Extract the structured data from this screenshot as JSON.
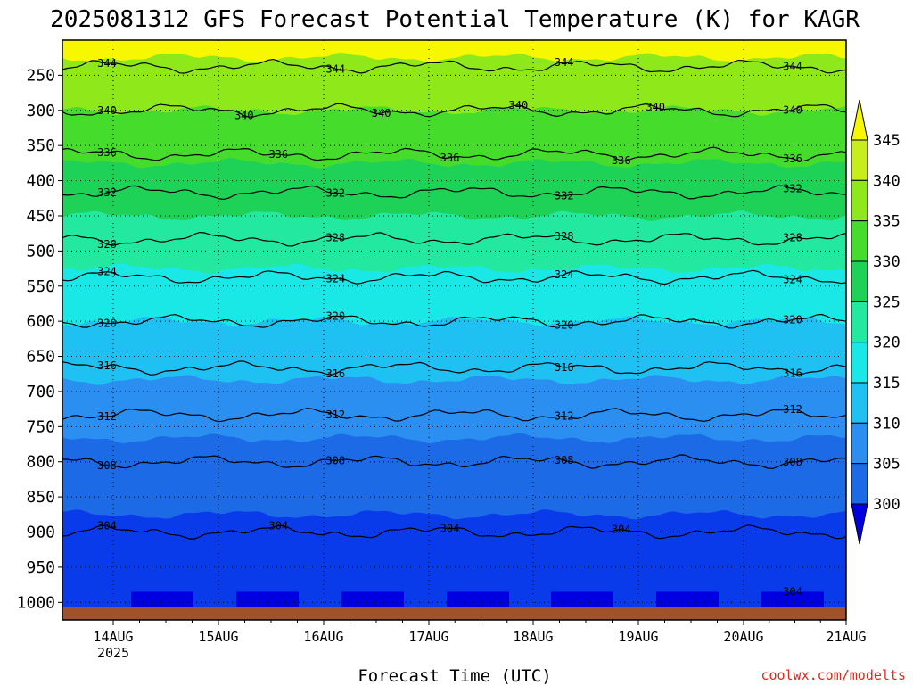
{
  "chart_data": {
    "type": "heatmap",
    "title": "2025081312 GFS Forecast Potential Temperature (K) for KAGR",
    "xlabel": "Forecast Time (UTC)",
    "ylabel": "",
    "x_ticks": [
      "14AUG",
      "15AUG",
      "16AUG",
      "17AUG",
      "18AUG",
      "19AUG",
      "20AUG",
      "21AUG"
    ],
    "x_year_label": "2025",
    "y_ticks": [
      250,
      300,
      350,
      400,
      450,
      500,
      550,
      600,
      650,
      700,
      750,
      800,
      850,
      900,
      950,
      1000
    ],
    "y_axis": "pressure (hPa), decreasing upward",
    "x_range": [
      "2025-08-13 12Z",
      "2025-08-21 00Z"
    ],
    "y_range": [
      1025,
      200
    ],
    "grid": true,
    "colorbar": {
      "levels": [
        300,
        305,
        310,
        315,
        320,
        325,
        330,
        335,
        340,
        345
      ],
      "colors": [
        "#0000e0",
        "#0a3bea",
        "#1c6ae6",
        "#2a8ff0",
        "#1fc0f2",
        "#19e8e6",
        "#22e8a0",
        "#1ed257",
        "#46dc2c",
        "#8fe81a",
        "#c7ee1c",
        "#f7f700"
      ],
      "extend": "both"
    },
    "contour_interval_K": 4,
    "contour_labels": [
      "344",
      "344",
      "344",
      "344",
      "340",
      "340",
      "340",
      "340",
      "340",
      "340",
      "336",
      "336",
      "336",
      "336",
      "336",
      "332",
      "332",
      "332",
      "332",
      "328",
      "328",
      "328",
      "328",
      "324",
      "324",
      "324",
      "324",
      "320",
      "320",
      "320",
      "320",
      "316",
      "316",
      "316",
      "316",
      "312",
      "312",
      "312",
      "312",
      "308",
      "308",
      "308",
      "308",
      "304",
      "304",
      "304",
      "304",
      "304"
    ],
    "level_theta_K": [
      {
        "p": 200,
        "theta": 347
      },
      {
        "p": 250,
        "theta": 343
      },
      {
        "p": 300,
        "theta": 340
      },
      {
        "p": 350,
        "theta": 337
      },
      {
        "p": 400,
        "theta": 333
      },
      {
        "p": 450,
        "theta": 330
      },
      {
        "p": 500,
        "theta": 327
      },
      {
        "p": 550,
        "theta": 323
      },
      {
        "p": 600,
        "theta": 320
      },
      {
        "p": 650,
        "theta": 317
      },
      {
        "p": 700,
        "theta": 314
      },
      {
        "p": 750,
        "theta": 311
      },
      {
        "p": 800,
        "theta": 308
      },
      {
        "p": 850,
        "theta": 306
      },
      {
        "p": 900,
        "theta": 304
      },
      {
        "p": 950,
        "theta": 303
      },
      {
        "p": 1000,
        "theta": 302
      }
    ]
  },
  "credit": "coolwx.com/modelts"
}
